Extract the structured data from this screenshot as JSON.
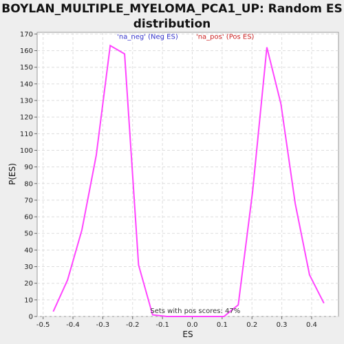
{
  "title_line1": "BOYLAN_MULTIPLE_MYELOMA_PCA1_UP: Random ES",
  "title_line2": "distribution",
  "chart_data": {
    "type": "line",
    "xlabel": "ES",
    "ylabel": "P(ES)",
    "xlim": [
      -0.52,
      0.49
    ],
    "ylim": [
      0,
      171
    ],
    "xticks": [
      -0.5,
      -0.4,
      -0.3,
      -0.2,
      -0.1,
      0.0,
      0.1,
      0.2,
      0.3,
      0.4
    ],
    "xtick_labels": [
      "-0.5",
      "-0.4",
      "-0.3",
      "-0.2",
      "-0.1",
      "0.0",
      "0.1",
      "0.2",
      "0.3",
      "0.4"
    ],
    "yticks": [
      0,
      10,
      20,
      30,
      40,
      50,
      60,
      70,
      80,
      90,
      100,
      110,
      120,
      130,
      140,
      150,
      160,
      170
    ],
    "grid": true,
    "series": [
      {
        "color": "#ff44ff",
        "x": [
          -0.466,
          -0.418,
          -0.37,
          -0.322,
          -0.275,
          -0.227,
          -0.18,
          -0.133,
          -0.085,
          -0.037,
          0.01,
          0.058,
          0.106,
          0.154,
          0.202,
          0.25,
          0.297,
          0.345,
          0.393,
          0.441
        ],
        "y": [
          3,
          22,
          52,
          97,
          163,
          158,
          31,
          1,
          0,
          0,
          0,
          0,
          0,
          7,
          75,
          162,
          128,
          68,
          25,
          8
        ]
      }
    ],
    "annotations": [
      {
        "text": "'na_neg' (Neg ES)",
        "color": "#3333cc",
        "x": -0.15,
        "y": 167
      },
      {
        "text": "'na_pos' (Pos ES)",
        "color": "#cc2222",
        "x": 0.11,
        "y": 167
      },
      {
        "text": "Sets with pos scores: 47%",
        "color": "#333333",
        "x": 0.01,
        "y": 2
      }
    ]
  }
}
